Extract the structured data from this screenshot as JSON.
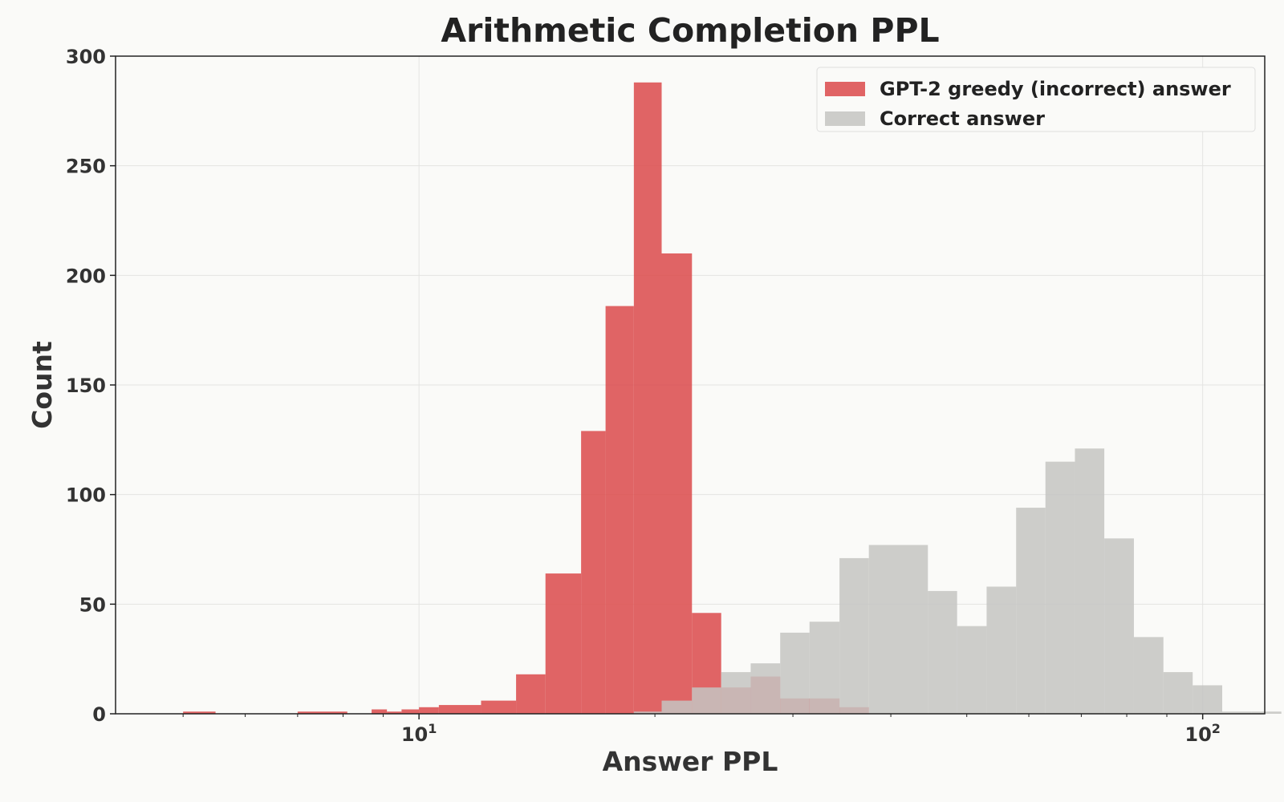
{
  "chart_data": {
    "type": "bar",
    "title": "Arithmetic Completion PPL",
    "xlabel": "Answer PPL",
    "ylabel": "Count",
    "x_scale": "log",
    "xlim": [
      4.1,
      120
    ],
    "ylim": [
      0,
      300
    ],
    "x_ticks": [
      {
        "value": 10,
        "base": "10",
        "exp": "1"
      },
      {
        "value": 100,
        "base": "10",
        "exp": "2"
      }
    ],
    "y_ticks": [
      0,
      50,
      100,
      150,
      200,
      250,
      300
    ],
    "grid": true,
    "legend_position": "top-right",
    "series": [
      {
        "name": "GPT-2 greedy (incorrect) answer",
        "color": "#dc4f50",
        "bins": [
          {
            "lo": 5.0,
            "hi": 5.5,
            "value": 1
          },
          {
            "lo": 7.0,
            "hi": 8.1,
            "value": 1
          },
          {
            "lo": 8.7,
            "hi": 9.1,
            "value": 2
          },
          {
            "lo": 9.1,
            "hi": 9.5,
            "value": 1
          },
          {
            "lo": 9.5,
            "hi": 10.0,
            "value": 2
          },
          {
            "lo": 10.0,
            "hi": 10.6,
            "value": 3
          },
          {
            "lo": 10.6,
            "hi": 12.0,
            "value": 4
          },
          {
            "lo": 12.0,
            "hi": 13.3,
            "value": 6
          },
          {
            "lo": 13.3,
            "hi": 14.5,
            "value": 18
          },
          {
            "lo": 14.5,
            "hi": 16.1,
            "value": 64
          },
          {
            "lo": 16.1,
            "hi": 17.3,
            "value": 129
          },
          {
            "lo": 17.3,
            "hi": 18.8,
            "value": 186
          },
          {
            "lo": 18.8,
            "hi": 20.4,
            "value": 288
          },
          {
            "lo": 20.4,
            "hi": 22.3,
            "value": 210
          },
          {
            "lo": 22.3,
            "hi": 24.3,
            "value": 46
          },
          {
            "lo": 24.3,
            "hi": 26.5,
            "value": 12
          },
          {
            "lo": 26.5,
            "hi": 28.9,
            "value": 17
          },
          {
            "lo": 28.9,
            "hi": 34.4,
            "value": 7
          },
          {
            "lo": 34.4,
            "hi": 37.5,
            "value": 3
          }
        ]
      },
      {
        "name": "Correct answer",
        "color": "#c4c4c2",
        "bins": [
          {
            "lo": 18.8,
            "hi": 20.4,
            "value": 1
          },
          {
            "lo": 20.4,
            "hi": 22.3,
            "value": 6
          },
          {
            "lo": 22.3,
            "hi": 24.3,
            "value": 12
          },
          {
            "lo": 24.3,
            "hi": 26.5,
            "value": 19
          },
          {
            "lo": 26.5,
            "hi": 28.9,
            "value": 23
          },
          {
            "lo": 28.9,
            "hi": 31.5,
            "value": 37
          },
          {
            "lo": 31.5,
            "hi": 34.4,
            "value": 42
          },
          {
            "lo": 34.4,
            "hi": 37.5,
            "value": 71
          },
          {
            "lo": 37.5,
            "hi": 40.9,
            "value": 77
          },
          {
            "lo": 40.9,
            "hi": 44.6,
            "value": 77
          },
          {
            "lo": 44.6,
            "hi": 48.6,
            "value": 56
          },
          {
            "lo": 48.6,
            "hi": 53.0,
            "value": 40
          },
          {
            "lo": 53.0,
            "hi": 57.8,
            "value": 58
          },
          {
            "lo": 57.8,
            "hi": 63.0,
            "value": 94
          },
          {
            "lo": 63.0,
            "hi": 68.7,
            "value": 115
          },
          {
            "lo": 68.7,
            "hi": 74.9,
            "value": 121
          },
          {
            "lo": 74.9,
            "hi": 81.7,
            "value": 80
          },
          {
            "lo": 81.7,
            "hi": 89.1,
            "value": 35
          },
          {
            "lo": 89.1,
            "hi": 97.1,
            "value": 19
          },
          {
            "lo": 97.1,
            "hi": 105.9,
            "value": 13
          },
          {
            "lo": 105.9,
            "hi": 115.5,
            "value": 1
          },
          {
            "lo": 115.5,
            "hi": 126.0,
            "value": 1
          }
        ]
      }
    ]
  }
}
